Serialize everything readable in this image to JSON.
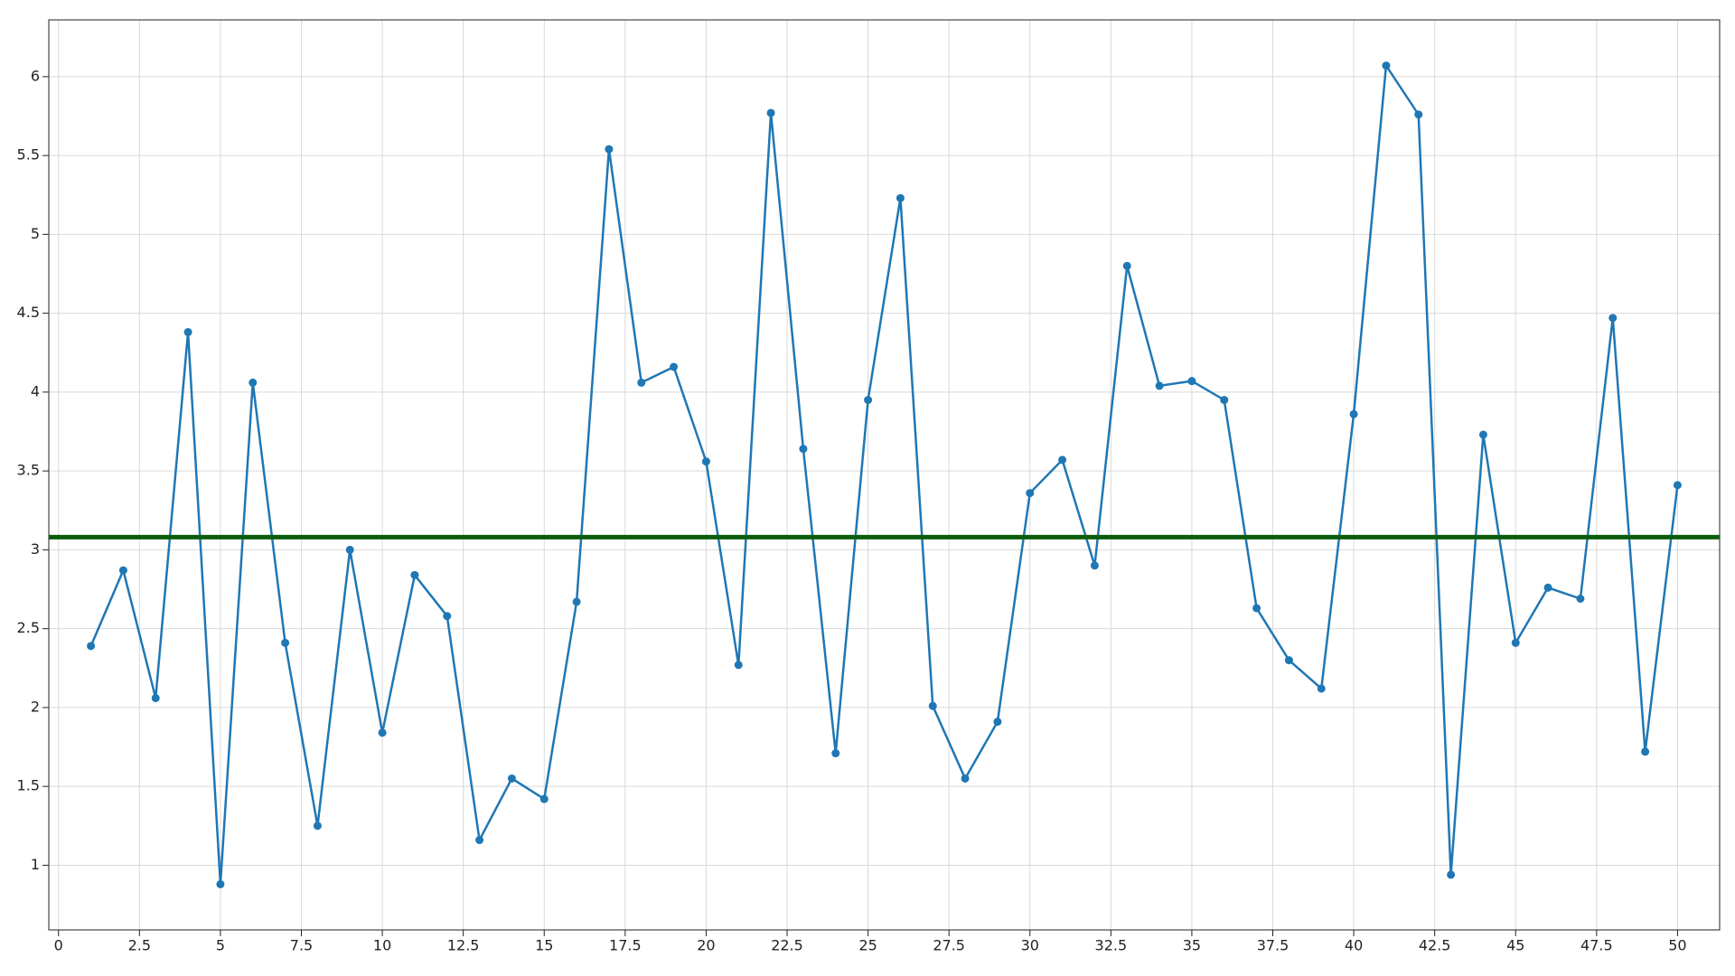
{
  "chart_data": {
    "type": "line",
    "x": [
      1,
      2,
      3,
      4,
      5,
      6,
      7,
      8,
      9,
      10,
      11,
      12,
      13,
      14,
      15,
      16,
      17,
      18,
      19,
      20,
      21,
      22,
      23,
      24,
      25,
      26,
      27,
      28,
      29,
      30,
      31,
      32,
      33,
      34,
      35,
      36,
      37,
      38,
      39,
      40,
      41,
      42,
      43,
      44,
      45,
      46,
      47,
      48,
      49,
      50
    ],
    "series": [
      {
        "color": "#1f77b4",
        "values": [
          2.39,
          2.87,
          2.06,
          4.38,
          0.88,
          4.06,
          2.41,
          1.25,
          3.0,
          1.84,
          2.84,
          2.58,
          1.16,
          1.55,
          1.42,
          2.67,
          5.54,
          4.06,
          4.16,
          3.56,
          2.27,
          5.77,
          3.64,
          1.71,
          3.95,
          5.23,
          2.01,
          1.55,
          1.91,
          3.36,
          3.57,
          2.9,
          4.8,
          4.04,
          4.07,
          3.95,
          2.63,
          2.3,
          2.12,
          3.86,
          6.07,
          5.76,
          0.94,
          3.73,
          2.41,
          2.76,
          2.69,
          4.47,
          1.72,
          3.41
        ]
      }
    ],
    "hline": {
      "value": 3.08,
      "color": "#0b5d0b"
    },
    "xlim": [
      -0.3,
      51.3
    ],
    "xticks": [
      0,
      2.5,
      5,
      7.5,
      10,
      12.5,
      15,
      17.5,
      20,
      22.5,
      25,
      27.5,
      30,
      32.5,
      35,
      37.5,
      40,
      42.5,
      45,
      47.5,
      50
    ],
    "ylim": [
      0.59,
      6.36
    ],
    "yticks": [
      1,
      1.5,
      2,
      2.5,
      3,
      3.5,
      4,
      4.5,
      5,
      5.5,
      6
    ],
    "grid": true
  }
}
